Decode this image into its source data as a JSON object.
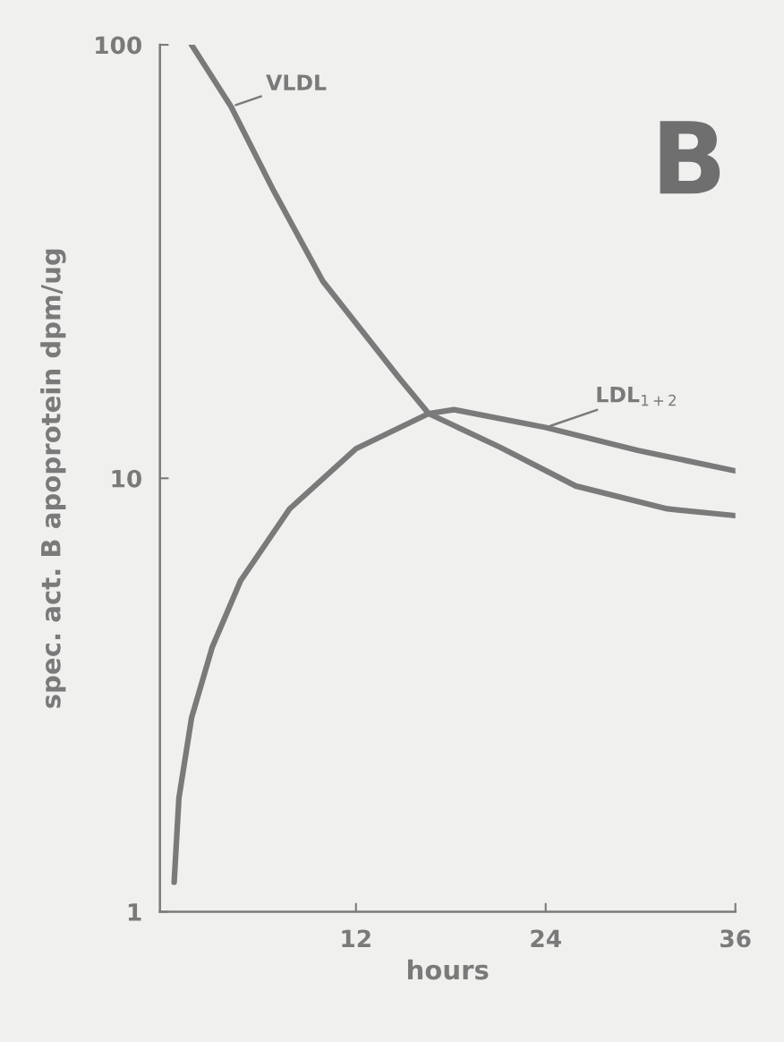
{
  "chart_data": {
    "type": "line",
    "xlabel": "hours",
    "ylabel": "spec. act. B apoprotein dpm/ug",
    "log": "y",
    "xlim": [
      -0.4,
      36
    ],
    "xticks": [
      12,
      24,
      36
    ],
    "ylim": [
      1,
      100
    ],
    "yticks": [
      1,
      10,
      100
    ],
    "grid": false,
    "legend": false,
    "marker": "none",
    "line_style": "solid",
    "annotations": [
      "B"
    ],
    "series": [
      {
        "name": "VLDL",
        "color": "#7a7a7a",
        "x": [
          1.6,
          4.1,
          6.8,
          9.9,
          14.7,
          16.6,
          21.1,
          25.9,
          31.7,
          36
        ],
        "values": [
          100,
          72,
          46,
          28.5,
          17.1,
          14.1,
          11.8,
          9.6,
          8.5,
          8.2
        ]
      },
      {
        "name": "LDL$_{1+2}$",
        "color": "#7a7a7a",
        "x": [
          0.5,
          0.8,
          1.6,
          2.9,
          4.7,
          7.8,
          12.0,
          16.6,
          18.2,
          24.0,
          29.8,
          36
        ],
        "values": [
          1.17,
          1.83,
          2.8,
          4.07,
          5.8,
          8.5,
          11.7,
          14.1,
          14.4,
          13.1,
          11.6,
          10.4
        ]
      }
    ]
  }
}
